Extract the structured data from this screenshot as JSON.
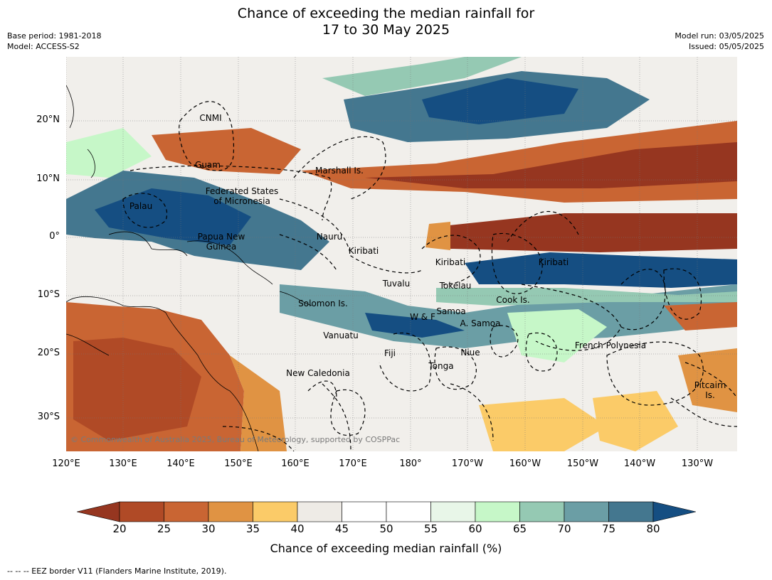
{
  "title_line1": "Chance of exceeding the median rainfall for",
  "title_line2": "17 to 30 May 2025",
  "base_period": "Base period: 1981-2018",
  "model": "Model: ACCESS-S2",
  "model_run": "Model run: 03/05/2025",
  "issued": "Issued: 05/05/2025",
  "lon_ticks": [
    "120°E",
    "130°E",
    "140°E",
    "150°E",
    "160°E",
    "170°E",
    "180°",
    "170°W",
    "160°W",
    "150°W",
    "140°W",
    "130°W"
  ],
  "lat_ticks": [
    "20°N",
    "10°N",
    "0°",
    "10°S",
    "20°S",
    "30°S"
  ],
  "region_labels": [
    "CNMI",
    "Guam",
    "Marshall Is.",
    "Federated States\nof Micronesia",
    "Palau",
    "Papua New\nGuinea",
    "Nauru",
    "Kiribati",
    "Kiribati",
    "Kiribati",
    "Tuvalu",
    "Tokelau",
    "Cook Is.",
    "Solomon Is.",
    "Samoa",
    "W & F",
    "A. Samoa",
    "Vanuatu",
    "Fiji",
    "Niue",
    "Tonga",
    "French Polynesia",
    "New Caledonia",
    "Pitcairn\nIs."
  ],
  "copyright": "© Commonwealth of Australia 2025, Bureau of Meteorology, supported by COSPPac",
  "colorbar": {
    "ticks": [
      "20",
      "25",
      "30",
      "35",
      "40",
      "45",
      "50",
      "55",
      "60",
      "65",
      "70",
      "75",
      "80"
    ],
    "colors": [
      "#963620",
      "#b04a26",
      "#c96533",
      "#e09343",
      "#fbcb68",
      "#eeebe6",
      "#ffffff",
      "#ffffff",
      "#e8f6e8",
      "#c6f7c8",
      "#95c9b3",
      "#6b9ea5",
      "#44778f",
      "#154e82"
    ],
    "label": "Chance of exceeding median rainfall (%)"
  },
  "footer": "--  --  -- EEZ border V11 (Flanders Marine Institute, 2019)."
}
